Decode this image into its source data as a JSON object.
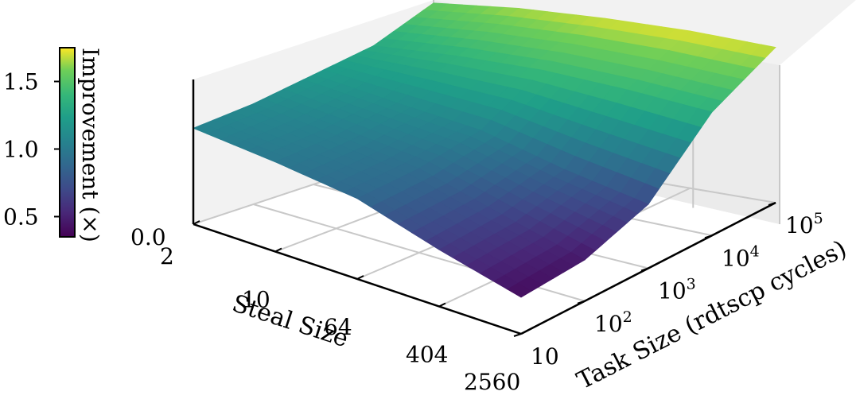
{
  "chart_data": {
    "type": "surface3d",
    "title": "",
    "xlabel": "Steal Size",
    "ylabel": "Task Size (rdtscp cycles)",
    "zlabel": "",
    "x_ticks": [
      "2",
      "10",
      "64",
      "404",
      "2560"
    ],
    "y_ticks": [
      "10",
      "10^2",
      "10^3",
      "10^4",
      "10^5"
    ],
    "z_ticks": [
      "0.0"
    ],
    "x": [
      2,
      10,
      64,
      404,
      2560
    ],
    "y": [
      10,
      100,
      1000,
      10000,
      100000
    ],
    "z_improvement": [
      [
        1.05,
        1.1,
        1.2,
        1.3,
        1.55
      ],
      [
        0.98,
        1.02,
        1.12,
        1.38,
        1.65
      ],
      [
        0.88,
        0.92,
        1.05,
        1.42,
        1.7
      ],
      [
        0.62,
        0.68,
        0.85,
        1.4,
        1.72
      ],
      [
        0.4,
        0.45,
        0.7,
        1.35,
        1.7
      ]
    ],
    "colorbar": {
      "label": "Improvement (×)",
      "colormap": "viridis",
      "min": 0.35,
      "max": 1.75,
      "ticks": [
        "0.5",
        "1.0",
        "1.5"
      ]
    },
    "grid": true
  }
}
